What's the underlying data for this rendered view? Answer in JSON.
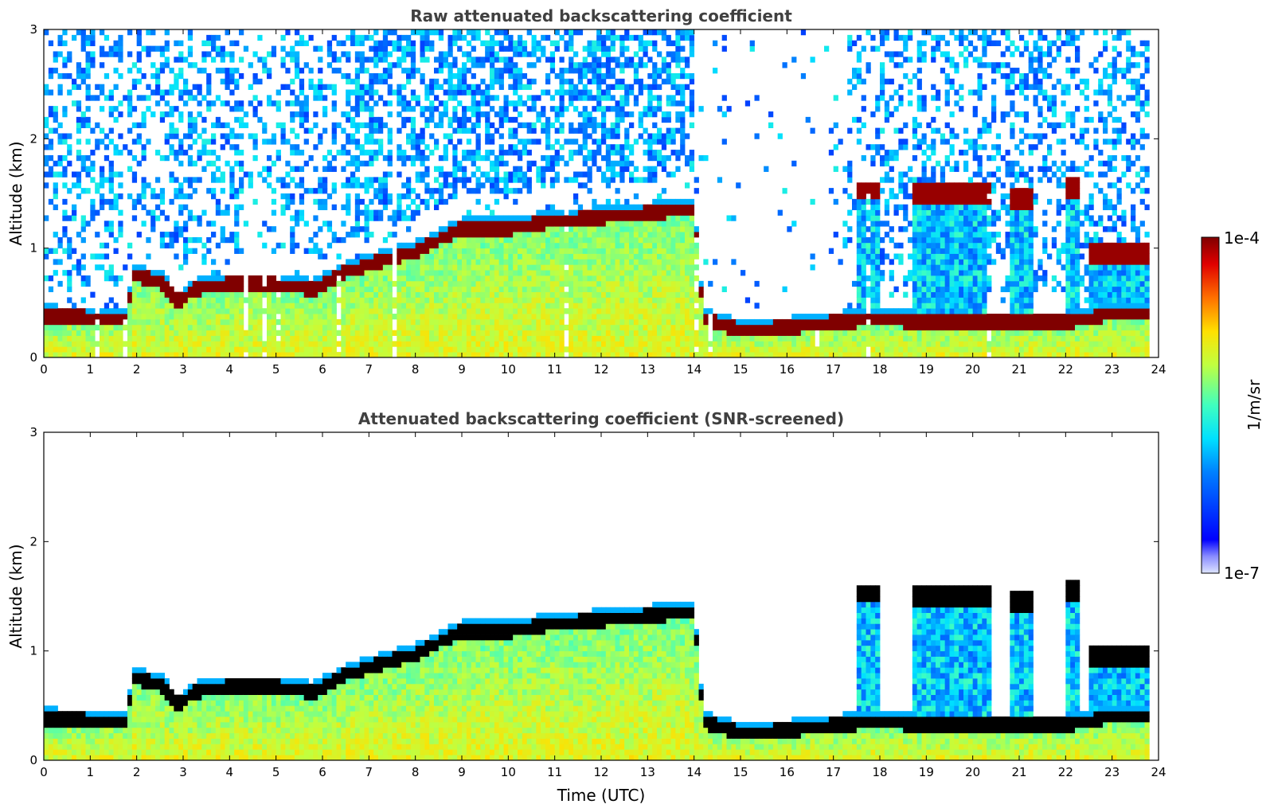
{
  "chart_data": [
    {
      "type": "heatmap",
      "title": "Raw attenuated backscattering coefficient",
      "xlabel": "",
      "ylabel": "Altitude (km)",
      "xlim": [
        0,
        24
      ],
      "ylim": [
        0,
        3
      ],
      "xticks": [
        "0",
        "1",
        "2",
        "3",
        "4",
        "5",
        "6",
        "7",
        "8",
        "9",
        "10",
        "11",
        "12",
        "13",
        "14",
        "15",
        "16",
        "17",
        "18",
        "19",
        "20",
        "21",
        "22",
        "23",
        "24"
      ],
      "yticks": [
        "0",
        "1",
        "2",
        "3"
      ],
      "variant": "raw",
      "colormap": "jet",
      "cloud_top_km": [
        [
          0,
          0.38
        ],
        [
          1.8,
          0.35
        ],
        [
          1.9,
          0.75
        ],
        [
          2.5,
          0.7
        ],
        [
          2.9,
          0.5
        ],
        [
          3.2,
          0.62
        ],
        [
          4,
          0.67
        ],
        [
          5,
          0.67
        ],
        [
          5.8,
          0.62
        ],
        [
          6.5,
          0.78
        ],
        [
          7,
          0.85
        ],
        [
          8,
          0.97
        ],
        [
          9,
          1.18
        ],
        [
          10,
          1.18
        ],
        [
          11,
          1.25
        ],
        [
          12,
          1.28
        ],
        [
          13,
          1.32
        ],
        [
          14,
          1.36
        ],
        [
          14.2,
          0.35
        ],
        [
          15,
          0.25
        ],
        [
          16,
          0.27
        ],
        [
          17,
          0.32
        ],
        [
          18,
          0.35
        ],
        [
          19,
          0.32
        ],
        [
          20,
          0.32
        ],
        [
          21,
          0.32
        ],
        [
          22,
          0.32
        ],
        [
          23,
          0.4
        ],
        [
          23.8,
          0.4
        ]
      ]
    },
    {
      "type": "heatmap",
      "title": "Attenuated backscattering coefficient (SNR-screened)",
      "xlabel": "Time (UTC)",
      "ylabel": "Altitude (km)",
      "xlim": [
        0,
        24
      ],
      "ylim": [
        0,
        3
      ],
      "xticks": [
        "0",
        "1",
        "2",
        "3",
        "4",
        "5",
        "6",
        "7",
        "8",
        "9",
        "10",
        "11",
        "12",
        "13",
        "14",
        "15",
        "16",
        "17",
        "18",
        "19",
        "20",
        "21",
        "22",
        "23",
        "24"
      ],
      "yticks": [
        "0",
        "1",
        "2",
        "3"
      ],
      "variant": "screened",
      "colormap": "jet"
    }
  ],
  "colorbar": {
    "label": "1/m/sr",
    "max_label": "1e-4",
    "min_label": "1e-7",
    "vmin": 1e-07,
    "vmax": 0.0001,
    "scale": "log"
  }
}
